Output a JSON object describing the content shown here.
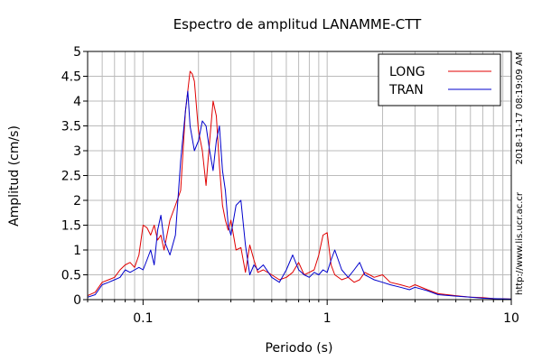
{
  "chart_data": {
    "type": "line",
    "title": "Espectro de amplitud LANAMME-CTT",
    "xlabel": "Periodo (s)",
    "ylabel": "Amplitud (cm/s)",
    "x_scale": "log",
    "xlim": [
      0.05,
      10
    ],
    "ylim": [
      0,
      5
    ],
    "x_tick_labels": [
      {
        "value": 0.1,
        "label": "0.1"
      },
      {
        "value": 1,
        "label": "1"
      },
      {
        "value": 10,
        "label": "10"
      }
    ],
    "y_ticks": [
      0,
      0.5,
      1,
      1.5,
      2,
      2.5,
      3,
      3.5,
      4,
      4.5,
      5
    ],
    "y_tick_labels": [
      "0",
      "0.5",
      "1",
      "1.5",
      "2",
      "2.5",
      "3",
      "3.5",
      "4",
      "4.5",
      "5"
    ],
    "grid": true,
    "legend_position": "top-right",
    "timestamp": "2018-11-17 08:19:09 AM",
    "url": "http://www.lis.ucr.ac.cr",
    "series": [
      {
        "name": "LONG",
        "color": "#e00000",
        "x": [
          0.05,
          0.055,
          0.06,
          0.065,
          0.07,
          0.075,
          0.08,
          0.085,
          0.09,
          0.095,
          0.1,
          0.105,
          0.11,
          0.115,
          0.12,
          0.125,
          0.13,
          0.14,
          0.15,
          0.16,
          0.17,
          0.18,
          0.185,
          0.19,
          0.2,
          0.21,
          0.22,
          0.23,
          0.24,
          0.25,
          0.26,
          0.27,
          0.28,
          0.29,
          0.3,
          0.32,
          0.34,
          0.36,
          0.38,
          0.4,
          0.42,
          0.45,
          0.5,
          0.55,
          0.6,
          0.65,
          0.7,
          0.75,
          0.8,
          0.85,
          0.9,
          0.95,
          1.0,
          1.05,
          1.1,
          1.2,
          1.3,
          1.4,
          1.5,
          1.6,
          1.7,
          1.8,
          2.0,
          2.2,
          2.5,
          2.8,
          3.0,
          3.5,
          4.0,
          5.0,
          6.0,
          7.0,
          8.0,
          10.0
        ],
        "y": [
          0.08,
          0.15,
          0.35,
          0.4,
          0.45,
          0.6,
          0.7,
          0.75,
          0.65,
          0.9,
          1.5,
          1.45,
          1.3,
          1.5,
          1.2,
          1.3,
          1.0,
          1.6,
          1.9,
          2.2,
          3.8,
          4.6,
          4.55,
          4.4,
          3.4,
          3.0,
          2.3,
          3.2,
          4.0,
          3.7,
          2.7,
          1.9,
          1.6,
          1.4,
          1.6,
          1.0,
          1.05,
          0.55,
          1.1,
          0.8,
          0.55,
          0.6,
          0.5,
          0.4,
          0.45,
          0.55,
          0.75,
          0.5,
          0.55,
          0.6,
          0.9,
          1.3,
          1.35,
          0.7,
          0.5,
          0.4,
          0.45,
          0.35,
          0.4,
          0.55,
          0.5,
          0.45,
          0.5,
          0.35,
          0.3,
          0.25,
          0.3,
          0.2,
          0.12,
          0.08,
          0.05,
          0.04,
          0.02,
          0.01
        ]
      },
      {
        "name": "TRAN",
        "color": "#0000cc",
        "x": [
          0.05,
          0.055,
          0.06,
          0.065,
          0.07,
          0.075,
          0.08,
          0.085,
          0.09,
          0.095,
          0.1,
          0.105,
          0.11,
          0.115,
          0.12,
          0.125,
          0.13,
          0.14,
          0.15,
          0.16,
          0.17,
          0.175,
          0.18,
          0.19,
          0.2,
          0.21,
          0.22,
          0.23,
          0.24,
          0.25,
          0.26,
          0.27,
          0.28,
          0.29,
          0.3,
          0.32,
          0.34,
          0.36,
          0.38,
          0.4,
          0.42,
          0.45,
          0.5,
          0.55,
          0.6,
          0.65,
          0.7,
          0.75,
          0.8,
          0.85,
          0.9,
          0.95,
          1.0,
          1.05,
          1.1,
          1.2,
          1.3,
          1.4,
          1.5,
          1.6,
          1.7,
          1.8,
          2.0,
          2.2,
          2.5,
          2.8,
          3.0,
          3.5,
          4.0,
          5.0,
          6.0,
          7.0,
          8.0,
          10.0
        ],
        "y": [
          0.05,
          0.1,
          0.3,
          0.35,
          0.4,
          0.45,
          0.6,
          0.55,
          0.6,
          0.65,
          0.6,
          0.8,
          1.0,
          0.7,
          1.4,
          1.7,
          1.2,
          0.9,
          1.3,
          2.8,
          3.8,
          4.2,
          3.5,
          3.0,
          3.2,
          3.6,
          3.5,
          3.0,
          2.6,
          3.2,
          3.5,
          2.6,
          2.2,
          1.5,
          1.3,
          1.9,
          2.0,
          1.1,
          0.5,
          0.7,
          0.6,
          0.7,
          0.45,
          0.35,
          0.6,
          0.9,
          0.6,
          0.5,
          0.45,
          0.55,
          0.5,
          0.6,
          0.55,
          0.8,
          1.0,
          0.6,
          0.45,
          0.6,
          0.75,
          0.5,
          0.45,
          0.4,
          0.35,
          0.3,
          0.25,
          0.2,
          0.25,
          0.18,
          0.1,
          0.07,
          0.05,
          0.03,
          0.02,
          0.01
        ]
      }
    ]
  }
}
